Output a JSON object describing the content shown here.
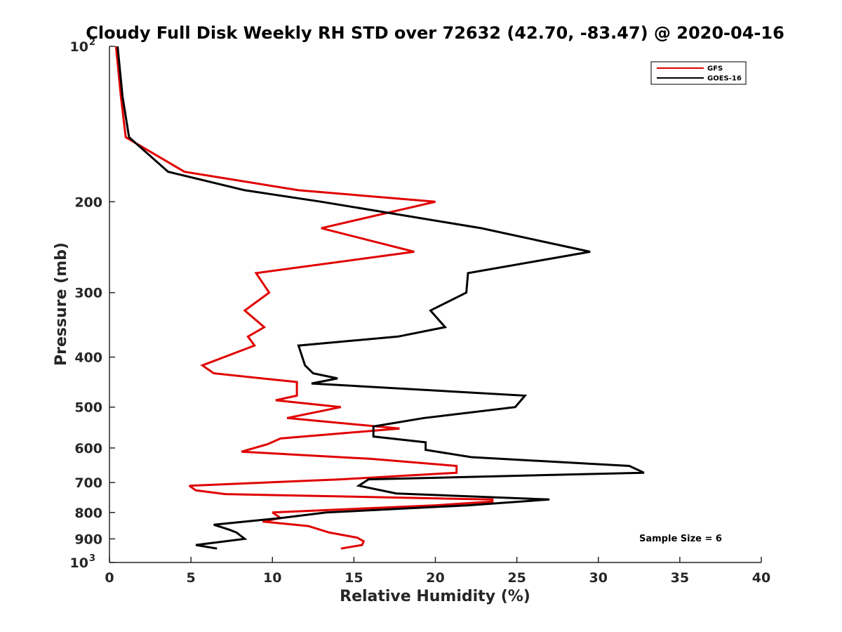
{
  "chart_data": {
    "type": "line",
    "title": "Cloudy Full Disk Weekly RH STD over 72632 (42.70, -83.47) @ 2020-04-16",
    "xlabel": "Relative Humidity (%)",
    "ylabel": "Pressure (mb)",
    "xlim": [
      0,
      40
    ],
    "ylim": [
      100,
      1000
    ],
    "y_scale": "log",
    "y_reversed": true,
    "x_ticks": [
      "0",
      "5",
      "10",
      "15",
      "20",
      "25",
      "30",
      "35",
      "40"
    ],
    "y_ticks": [
      {
        "value": 100,
        "base": "10",
        "exp": "2"
      },
      {
        "value": 200,
        "label": "200"
      },
      {
        "value": 300,
        "label": "300"
      },
      {
        "value": 400,
        "label": "400"
      },
      {
        "value": 500,
        "label": "500"
      },
      {
        "value": 600,
        "label": "600"
      },
      {
        "value": 700,
        "label": "700"
      },
      {
        "value": 800,
        "label": "800"
      },
      {
        "value": 900,
        "label": "900"
      },
      {
        "value": 1000,
        "base": "10",
        "exp": "3"
      }
    ],
    "grid": false,
    "legend_position": "top-right",
    "annotation": "Sample Size = 6",
    "series": [
      {
        "name": "GFS",
        "color": "#e00000",
        "points": [
          [
            0.4,
            100
          ],
          [
            0.7,
            125
          ],
          [
            1.0,
            150
          ],
          [
            4.6,
            175
          ],
          [
            11.6,
            190
          ],
          [
            20.0,
            200
          ],
          [
            13.0,
            225
          ],
          [
            18.7,
            250
          ],
          [
            9.0,
            275
          ],
          [
            9.8,
            300
          ],
          [
            8.3,
            325
          ],
          [
            9.5,
            350
          ],
          [
            8.5,
            365
          ],
          [
            8.9,
            380
          ],
          [
            5.7,
            415
          ],
          [
            6.4,
            430
          ],
          [
            11.5,
            447
          ],
          [
            11.5,
            475
          ],
          [
            10.2,
            485
          ],
          [
            14.2,
            500
          ],
          [
            10.9,
            525
          ],
          [
            17.8,
            550
          ],
          [
            10.5,
            575
          ],
          [
            9.7,
            590
          ],
          [
            8.1,
            610
          ],
          [
            16.1,
            630
          ],
          [
            21.3,
            650
          ],
          [
            21.3,
            670
          ],
          [
            14.2,
            690
          ],
          [
            4.9,
            710
          ],
          [
            5.3,
            725
          ],
          [
            7.1,
            737
          ],
          [
            23.5,
            755
          ],
          [
            23.5,
            762
          ],
          [
            20.0,
            775
          ],
          [
            10.0,
            800
          ],
          [
            10.5,
            820
          ],
          [
            9.4,
            833
          ],
          [
            12.2,
            850
          ],
          [
            13.5,
            875
          ],
          [
            15.2,
            895
          ],
          [
            15.6,
            910
          ],
          [
            15.5,
            925
          ],
          [
            14.2,
            940
          ]
        ]
      },
      {
        "name": "GOES-16",
        "color": "#000000",
        "points": [
          [
            0.5,
            100
          ],
          [
            0.8,
            125
          ],
          [
            1.2,
            150
          ],
          [
            3.6,
            175
          ],
          [
            8.3,
            190
          ],
          [
            13.0,
            200
          ],
          [
            22.8,
            225
          ],
          [
            29.5,
            250
          ],
          [
            22.0,
            275
          ],
          [
            21.9,
            300
          ],
          [
            19.7,
            325
          ],
          [
            20.6,
            350
          ],
          [
            17.7,
            365
          ],
          [
            11.6,
            380
          ],
          [
            12.0,
            415
          ],
          [
            12.5,
            430
          ],
          [
            14.0,
            440
          ],
          [
            12.4,
            450
          ],
          [
            25.5,
            475
          ],
          [
            24.9,
            500
          ],
          [
            19.3,
            525
          ],
          [
            16.2,
            545
          ],
          [
            16.2,
            570
          ],
          [
            19.4,
            585
          ],
          [
            19.4,
            605
          ],
          [
            22.2,
            625
          ],
          [
            31.9,
            650
          ],
          [
            32.8,
            670
          ],
          [
            15.9,
            690
          ],
          [
            15.3,
            710
          ],
          [
            17.6,
            735
          ],
          [
            27.0,
            755
          ],
          [
            22.0,
            775
          ],
          [
            13.3,
            800
          ],
          [
            10.5,
            820
          ],
          [
            6.4,
            845
          ],
          [
            7.4,
            865
          ],
          [
            7.8,
            875
          ],
          [
            8.0,
            885
          ],
          [
            8.3,
            900
          ],
          [
            5.3,
            925
          ],
          [
            6.6,
            940
          ]
        ]
      }
    ]
  }
}
